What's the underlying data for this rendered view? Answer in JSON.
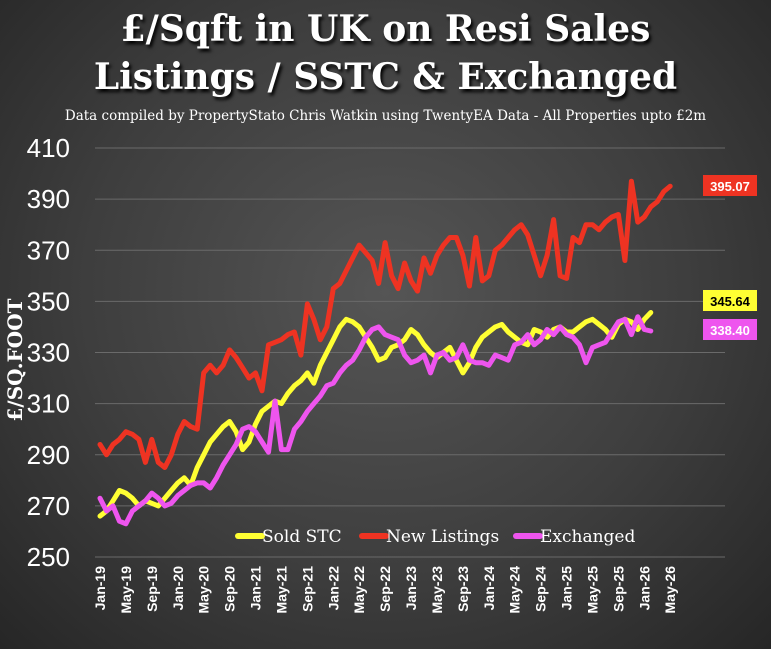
{
  "page": {
    "title_line1": "£/Sqft in UK on Resi Sales",
    "title_line2": "Listings / SSTC & Exchanged",
    "subtitle": "Data compiled by PropertyStato Chris Watkin using TwentyEA Data - All Properties upto £2m"
  },
  "chart_data": {
    "type": "line",
    "title": "£/Sqft in UK on Resi Sales Listings / SSTC & Exchanged",
    "ylabel": "£/SQ.FOOT",
    "xlabel": "",
    "ylim": [
      250,
      410
    ],
    "yticks": [
      250,
      270,
      290,
      310,
      330,
      350,
      370,
      390,
      410
    ],
    "xtick_labels": [
      "Jan-19",
      "May-19",
      "Sep-19",
      "Jan-20",
      "May-20",
      "Sep-20",
      "Jan-21",
      "May-21",
      "Sep-21",
      "Jan-22",
      "May-22",
      "Sep-22",
      "Jan-23",
      "May-23",
      "Sep-23",
      "Jan-24",
      "May-24",
      "Sep-24",
      "Jan-25",
      "May-25",
      "Sep-25",
      "Jan-26",
      "May-26"
    ],
    "x_start": "Jan-19",
    "x_interval": "month",
    "grid": true,
    "legend_position": "bottom-center",
    "series": [
      {
        "name": "Sold STC",
        "color": "#ffff33",
        "end_label": "345.64",
        "values": [
          266,
          268,
          272,
          276,
          275,
          273,
          270,
          272,
          271,
          270,
          273,
          276,
          279,
          281,
          278,
          285,
          290,
          295,
          298,
          301,
          303,
          299,
          292,
          295,
          302,
          307,
          309,
          311,
          310,
          314,
          317,
          319,
          322,
          318,
          325,
          330,
          335,
          340,
          343,
          342,
          340,
          336,
          332,
          327,
          328,
          332,
          333,
          335,
          339,
          337,
          333,
          330,
          328,
          330,
          332,
          327,
          322,
          326,
          332,
          336,
          338,
          340,
          341,
          338,
          336,
          334,
          333,
          339,
          338,
          336,
          339,
          340,
          338,
          338,
          340,
          342,
          343,
          341,
          339,
          336,
          341,
          343,
          342,
          339,
          343,
          345.64
        ]
      },
      {
        "name": "New Listings",
        "color": "#ee3322",
        "end_label": "395.07",
        "values": [
          294,
          290,
          294,
          296,
          299,
          298,
          296,
          287,
          296,
          287,
          285,
          290,
          298,
          303,
          301,
          300,
          322,
          325,
          322,
          325,
          331,
          328,
          324,
          320,
          322,
          315,
          333,
          334,
          335,
          337,
          338,
          329,
          349,
          343,
          335,
          340,
          355,
          357,
          362,
          367,
          372,
          369,
          366,
          357,
          373,
          360,
          355,
          365,
          358,
          354,
          367,
          361,
          368,
          372,
          375,
          375,
          368,
          356,
          375,
          358,
          360,
          370,
          372,
          375,
          378,
          380,
          376,
          368,
          360,
          368,
          382,
          360,
          359,
          375,
          373,
          380,
          380,
          378,
          381,
          383,
          384,
          366,
          397,
          381,
          383,
          387,
          389,
          393,
          395.07
        ]
      },
      {
        "name": "Exchanged",
        "color": "#ee55ee",
        "end_label": "338.40",
        "values": [
          273,
          268,
          270,
          264,
          263,
          268,
          270,
          272,
          275,
          273,
          270,
          271,
          274,
          276,
          278,
          279,
          279,
          277,
          281,
          286,
          290,
          294,
          300,
          301,
          299,
          295,
          291,
          311,
          292,
          292,
          300,
          303,
          307,
          310,
          313,
          317,
          318,
          322,
          325,
          327,
          331,
          336,
          339,
          340,
          337,
          336,
          335,
          329,
          326,
          327,
          329,
          322,
          329,
          330,
          327,
          328,
          333,
          327,
          326,
          326,
          325,
          329,
          328,
          327,
          333,
          334,
          337,
          333,
          335,
          339,
          337,
          340,
          337,
          336,
          333,
          326,
          332,
          333,
          334,
          338,
          342,
          343,
          337,
          344,
          339,
          338.4
        ]
      }
    ]
  }
}
